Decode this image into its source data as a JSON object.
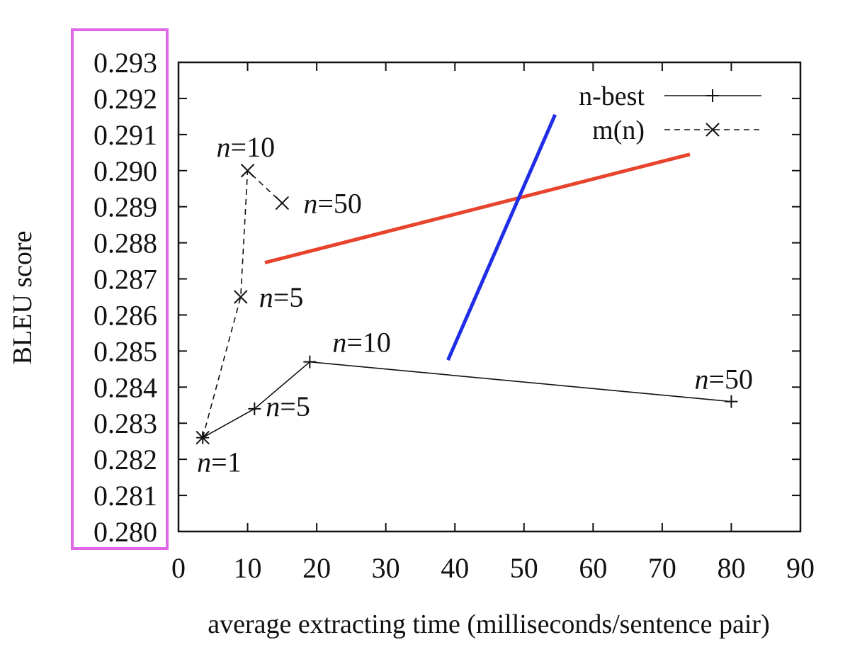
{
  "chart_data": {
    "type": "line",
    "xlabel": "average extracting time (milliseconds/sentence pair)",
    "ylabel": "BLEU score",
    "xlim": [
      0,
      90
    ],
    "ylim": [
      0.28,
      0.293
    ],
    "xticks": [
      "0",
      "10",
      "20",
      "30",
      "40",
      "50",
      "60",
      "70",
      "80",
      "90"
    ],
    "yticks": [
      "0.280",
      "0.281",
      "0.282",
      "0.283",
      "0.284",
      "0.285",
      "0.286",
      "0.287",
      "0.288",
      "0.289",
      "0.290",
      "0.291",
      "0.292",
      "0.293"
    ],
    "legend_position": "top-right",
    "series": [
      {
        "name": "n-best",
        "legend_italic": "n",
        "legend_rest": "-best",
        "line_style": "solid",
        "marker": "plus",
        "points": [
          {
            "x": 3.5,
            "y": 0.2826,
            "label_var": "n",
            "label_val": "=1"
          },
          {
            "x": 11,
            "y": 0.2834,
            "label_var": "n",
            "label_val": "=5"
          },
          {
            "x": 19,
            "y": 0.2847,
            "label_var": "n",
            "label_val": "=10"
          },
          {
            "x": 80,
            "y": 0.2836,
            "label_var": "n",
            "label_val": "=50"
          }
        ]
      },
      {
        "name": "m(n)",
        "legend_italic": "m",
        "legend_rest": "(n)",
        "line_style": "dashed",
        "marker": "cross",
        "points": [
          {
            "x": 3.5,
            "y": 0.2826,
            "label_var": "",
            "label_val": ""
          },
          {
            "x": 9,
            "y": 0.2865,
            "label_var": "n",
            "label_val": "=5"
          },
          {
            "x": 10,
            "y": 0.29,
            "label_var": "n",
            "label_val": "=10"
          },
          {
            "x": 15,
            "y": 0.2891,
            "label_var": "n",
            "label_val": "=50"
          }
        ]
      }
    ],
    "overlay_lines": [
      {
        "color": "#e8432c",
        "from": {
          "x": 12.5,
          "y": 0.28745
        },
        "to": {
          "x": 74,
          "y": 0.29045
        }
      },
      {
        "color": "#1f2ee6",
        "from": {
          "x": 39,
          "y": 0.28475
        },
        "to": {
          "x": 54.5,
          "y": 0.29155
        }
      }
    ],
    "highlight_box_color": "#e066e8"
  }
}
